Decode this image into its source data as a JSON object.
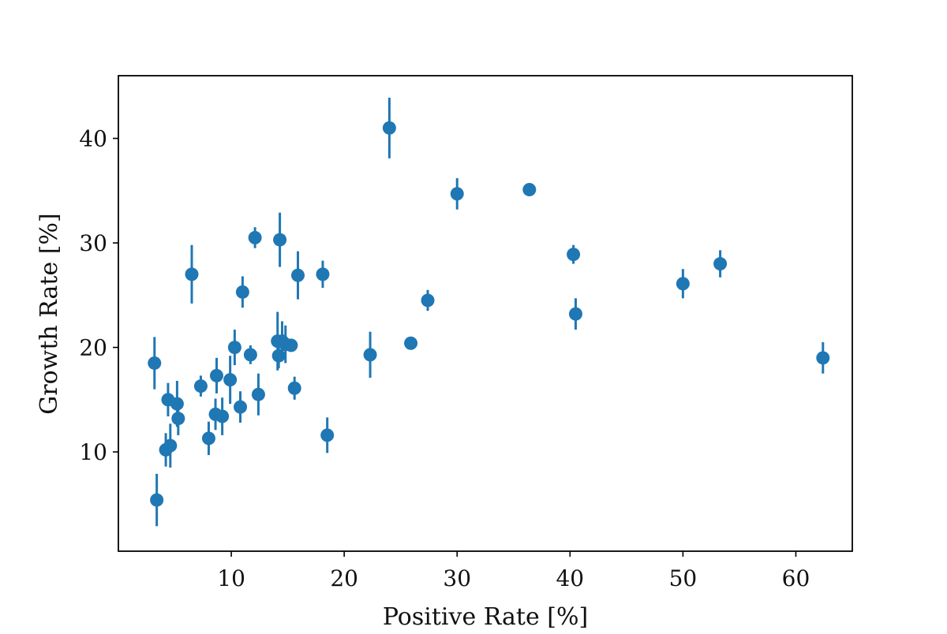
{
  "chart_data": {
    "type": "scatter",
    "title": "",
    "xlabel": "Positive Rate [%]",
    "ylabel": "Growth Rate [%]",
    "xlim": [
      0,
      65
    ],
    "ylim": [
      0.5,
      46
    ],
    "xticks": [
      10,
      20,
      30,
      40,
      50,
      60
    ],
    "yticks": [
      10,
      20,
      30,
      40
    ],
    "grid": false,
    "legend": "none",
    "marker": "circle",
    "color": "#1f77b4",
    "series": [
      {
        "x": [
          3.2,
          3.4,
          4.2,
          4.4,
          4.6,
          5.2,
          5.3,
          6.5,
          7.3,
          8.0,
          8.6,
          8.7,
          9.2,
          9.9,
          10.3,
          10.8,
          11.0,
          11.7,
          12.1,
          12.4,
          14.1,
          14.2,
          14.3,
          14.5,
          14.8,
          15.3,
          15.6,
          15.9,
          18.1,
          18.5,
          22.3,
          24.0,
          25.9,
          27.4,
          30.0,
          36.4,
          40.3,
          40.5,
          50.0,
          53.3,
          62.4
        ],
        "y": [
          18.5,
          5.4,
          10.2,
          15.0,
          10.6,
          14.6,
          13.2,
          27.0,
          16.3,
          11.3,
          13.6,
          17.3,
          13.4,
          16.9,
          20.0,
          14.3,
          25.3,
          19.3,
          30.5,
          15.5,
          20.6,
          19.2,
          30.3,
          20.6,
          20.3,
          20.2,
          16.1,
          26.9,
          27.0,
          11.6,
          19.3,
          41.0,
          20.4,
          24.5,
          34.7,
          35.1,
          28.9,
          23.2,
          26.1,
          28.0,
          19.0
        ],
        "yerr": [
          2.5,
          2.5,
          1.6,
          1.6,
          2.1,
          2.2,
          1.6,
          2.8,
          1.0,
          1.6,
          1.5,
          1.7,
          1.8,
          2.3,
          1.7,
          1.5,
          1.5,
          0.9,
          1.0,
          2.0,
          2.8,
          1.2,
          2.6,
          1.9,
          1.8,
          0.5,
          1.1,
          2.3,
          1.3,
          1.7,
          2.2,
          2.9,
          0.5,
          1.0,
          1.5,
          0.6,
          0.9,
          1.5,
          1.4,
          1.3,
          1.5
        ]
      }
    ]
  }
}
